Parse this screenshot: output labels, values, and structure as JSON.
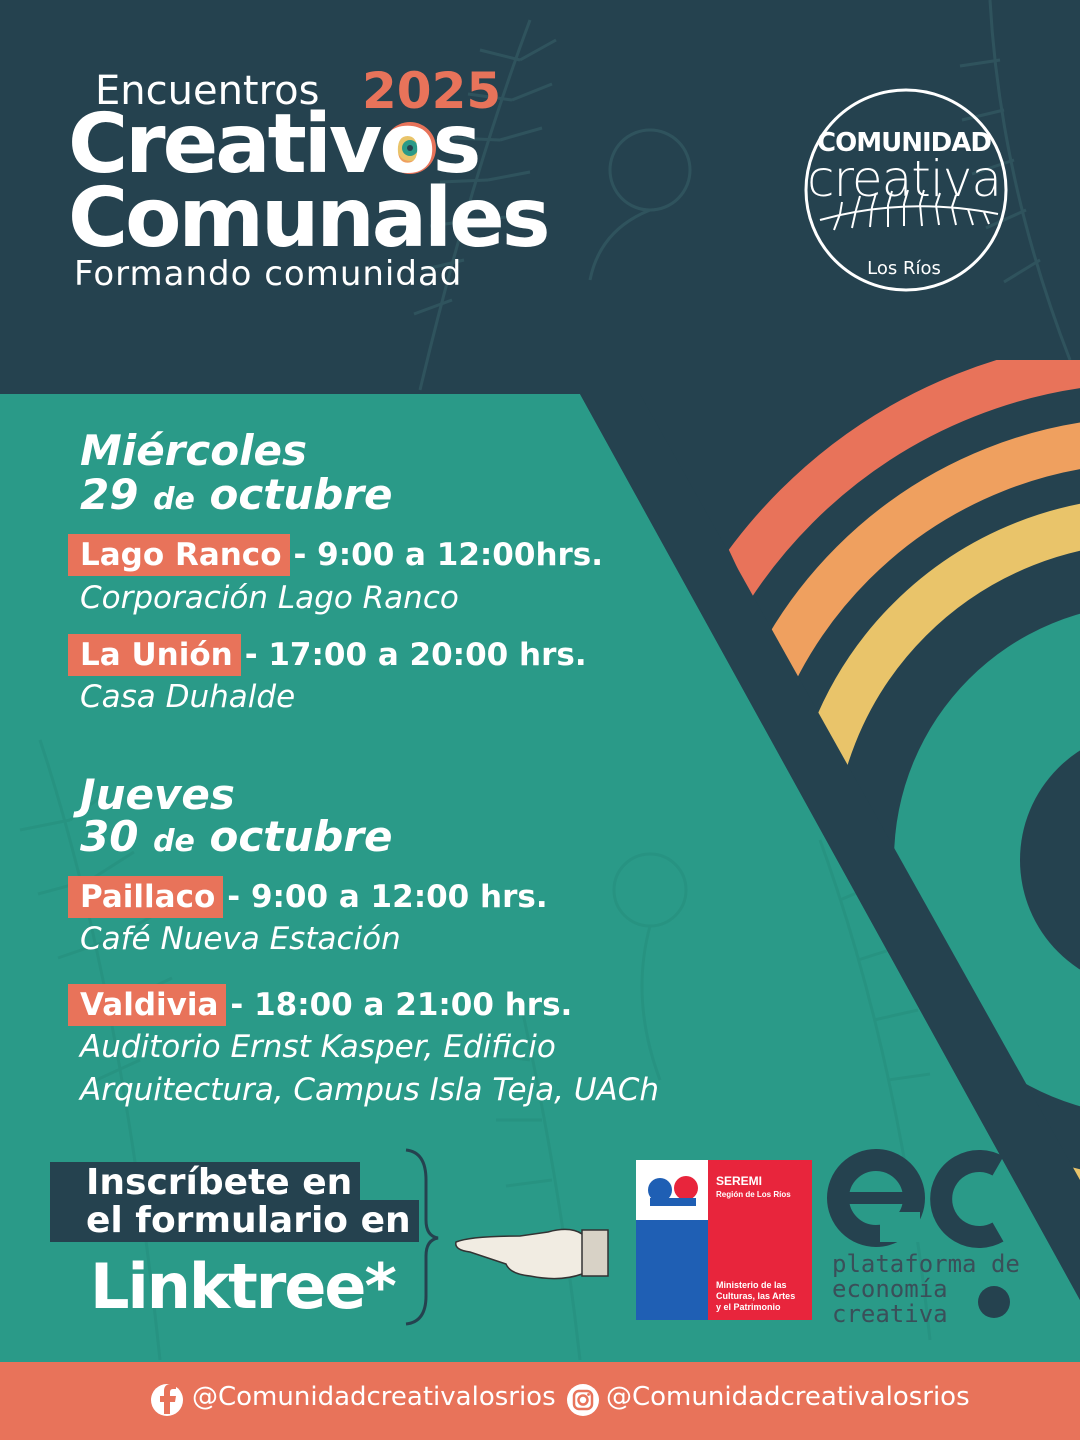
{
  "header": {
    "line1": "Encuentros",
    "year": "2025",
    "line2": "Creativos",
    "line3": "Comunales",
    "tagline": "Formando comunidad"
  },
  "logo": {
    "top": "COMUNIDAD",
    "middle": "creativa",
    "bottom": "Los Ríos"
  },
  "schedule": [
    {
      "day": "Miércoles",
      "date_num": "29",
      "date_de": "de",
      "date_month": "octubre",
      "events": [
        {
          "place": "Lago Ranco",
          "time": "- 9:00 a 12:00hrs.",
          "venue": [
            "Corporación Lago Ranco"
          ]
        },
        {
          "place": "La Unión",
          "time": "- 17:00 a 20:00 hrs.",
          "venue": [
            "Casa Duhalde"
          ]
        }
      ]
    },
    {
      "day": "Jueves",
      "date_num": "30",
      "date_de": "de",
      "date_month": "octubre",
      "events": [
        {
          "place": "Paillaco",
          "time": "- 9:00 a 12:00 hrs.",
          "venue": [
            "Café Nueva Estación"
          ]
        },
        {
          "place": "Valdivia",
          "time": "- 18:00 a 21:00 hrs.",
          "venue": [
            "Auditorio Ernst Kasper, Edificio",
            "Arquitectura, Campus Isla Teja, UACh"
          ]
        }
      ]
    }
  ],
  "cta": {
    "line1": "Inscríbete en",
    "line2": "el formulario en",
    "link": "Linktree*"
  },
  "seremi": {
    "title": "SEREMI",
    "subtitle": "Región de Los Ríos",
    "ministry_lines": [
      "Ministerio de las",
      "Culturas, las Artes",
      "y el Patrimonio"
    ]
  },
  "plataforma": {
    "lines": [
      "plataforma de",
      "economía",
      "creativa"
    ]
  },
  "footer": {
    "facebook": "@Comunidadcreativalosrios",
    "instagram": "@Comunidadcreativalosrios"
  },
  "colors": {
    "dark": "#25424f",
    "teal": "#2a9a88",
    "coral": "#e8735a",
    "orange": "#efa05f",
    "yellow": "#e9c46a"
  },
  "icons": [
    "facebook-icon",
    "instagram-icon",
    "pointing-hand-icon",
    "chile-coat-of-arms-icon",
    "fern-icon"
  ]
}
